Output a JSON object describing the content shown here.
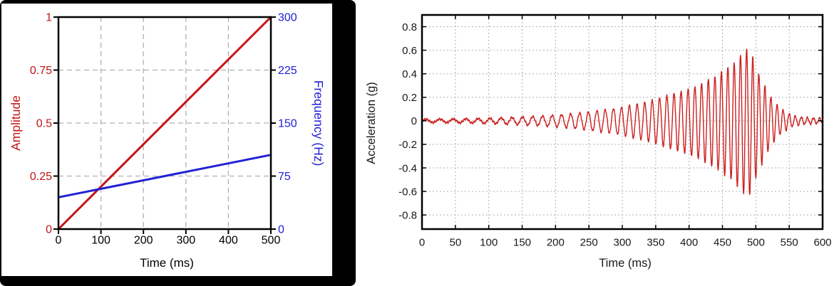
{
  "page": {
    "background": "#ffffff",
    "left_panel_frame_color": "#000000"
  },
  "colors": {
    "amplitude_red": "#c41414",
    "frequency_blue": "#2020d6",
    "acceleration_red": "#cc2020",
    "grid_gray": "#b0b0b0",
    "axis_black": "#000000",
    "tick_text_black": "#1a1a1a"
  },
  "chart_data": [
    {
      "id": "left-chart",
      "type": "line",
      "title": "",
      "xlabel": "Time (ms)",
      "ylabel": "Amplitude",
      "ylabel_right": "Frequency (Hz)",
      "xlim": [
        0,
        500
      ],
      "ylim": [
        0,
        1
      ],
      "ylim_right": [
        0,
        300
      ],
      "x_ticks": [
        0,
        100,
        200,
        300,
        400,
        500
      ],
      "x_tick_labels": [
        "0",
        "100",
        "200",
        "300",
        "400",
        "500"
      ],
      "y_ticks": [
        0,
        0.25,
        0.5,
        0.75,
        1
      ],
      "y_tick_labels": [
        "0",
        "0.25",
        "0.5",
        "0.75",
        "1"
      ],
      "y_ticks_right": [
        0,
        75,
        150,
        225,
        300
      ],
      "y_tick_labels_right": [
        "0",
        "75",
        "150",
        "225",
        "300"
      ],
      "grid": "dashed",
      "legend": "none",
      "series": [
        {
          "name": "Amplitude",
          "axis": "left",
          "color": "#c41414",
          "width": 3,
          "x": [
            0,
            500
          ],
          "y": [
            0,
            1
          ]
        },
        {
          "name": "Frequency (Hz)",
          "axis": "right",
          "color": "#2020d6",
          "width": 3,
          "x": [
            0,
            500
          ],
          "y": [
            45,
            105
          ]
        }
      ]
    },
    {
      "id": "right-chart",
      "type": "line",
      "title": "",
      "xlabel": "Time (ms)",
      "ylabel": "Acceleration (g)",
      "xlim": [
        0,
        600
      ],
      "ylim": [
        -0.92,
        0.9
      ],
      "x_ticks": [
        0,
        50,
        100,
        150,
        200,
        250,
        300,
        350,
        400,
        450,
        500,
        550,
        600
      ],
      "x_tick_labels": [
        "0",
        "50",
        "100",
        "150",
        "200",
        "250",
        "300",
        "350",
        "400",
        "450",
        "500",
        "550",
        "600"
      ],
      "y_ticks": [
        0.8,
        0.6,
        0.4,
        0.2,
        0,
        -0.2,
        -0.4,
        -0.6,
        -0.8
      ],
      "y_tick_labels": [
        "0.8",
        "0.6",
        "0.4",
        "0.2",
        "0",
        "-0.2",
        "-0.4",
        "-0.6",
        "-0.8"
      ],
      "grid": "dotted",
      "legend": "none",
      "series": [
        {
          "name": "Acceleration (g)",
          "color": "#cc2020",
          "width": 1.4,
          "signal": {
            "kind": "swept_sine_response",
            "freq_start_hz": 45,
            "freq_sweep_hz_per_ms": 0.13,
            "drive_end_ms": 500,
            "ring_freq_hz": 110,
            "peak_g": 0.61,
            "trough_g": -0.65,
            "peak_time_ms": 486,
            "negative_gain": 1.06,
            "noise_g": 0.006,
            "envelope": [
              [
                0,
                0.013
              ],
              [
                40,
                0.015
              ],
              [
                80,
                0.018
              ],
              [
                120,
                0.025
              ],
              [
                150,
                0.032
              ],
              [
                180,
                0.04
              ],
              [
                210,
                0.052
              ],
              [
                240,
                0.068
              ],
              [
                270,
                0.09
              ],
              [
                300,
                0.115
              ],
              [
                330,
                0.15
              ],
              [
                360,
                0.2
              ],
              [
                390,
                0.25
              ],
              [
                420,
                0.32
              ],
              [
                445,
                0.4
              ],
              [
                465,
                0.48
              ],
              [
                478,
                0.56
              ],
              [
                486,
                0.615
              ],
              [
                493,
                0.58
              ],
              [
                500,
                0.46
              ],
              [
                508,
                0.36
              ],
              [
                516,
                0.27
              ],
              [
                524,
                0.19
              ],
              [
                532,
                0.135
              ],
              [
                540,
                0.095
              ],
              [
                548,
                0.065
              ],
              [
                556,
                0.045
              ],
              [
                565,
                0.033
              ],
              [
                575,
                0.027
              ],
              [
                590,
                0.023
              ],
              [
                600,
                0.022
              ]
            ]
          }
        }
      ]
    }
  ]
}
